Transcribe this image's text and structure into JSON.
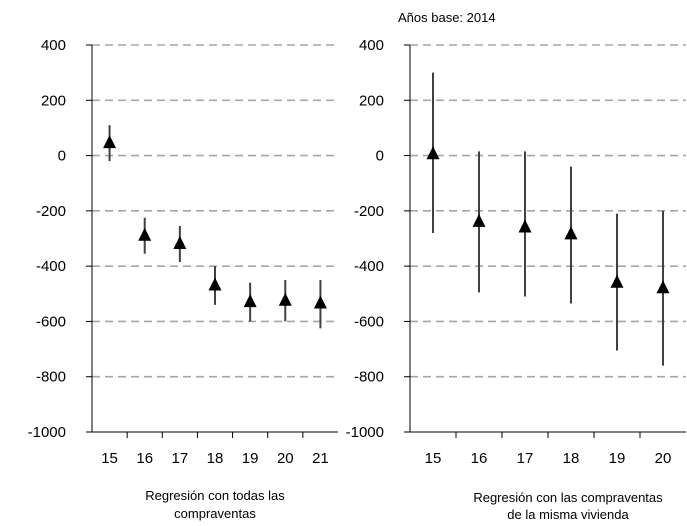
{
  "note": "Años base: 2014",
  "chart_data": [
    {
      "type": "scatter",
      "subtype": "point-with-error-bars",
      "title": "",
      "xlabel_lines": [
        "Regresión con todas las",
        "compraventas"
      ],
      "ylabel": "",
      "ylim": [
        -1000,
        400
      ],
      "yticks": [
        "400",
        "200",
        "0",
        "-200",
        "-400",
        "-600",
        "-800",
        "-1000"
      ],
      "grid": "horizontal dashed",
      "marker": "triangle",
      "color": "#000000",
      "error_bar_color": "#404040",
      "categories": [
        "15",
        "16",
        "17",
        "18",
        "19",
        "20",
        "21"
      ],
      "values": [
        45,
        -290,
        -320,
        -470,
        -530,
        -525,
        -535
      ],
      "lower": [
        -20,
        -355,
        -385,
        -540,
        -600,
        -600,
        -625
      ],
      "upper": [
        110,
        -225,
        -255,
        -400,
        -460,
        -450,
        -450
      ]
    },
    {
      "type": "scatter",
      "subtype": "point-with-error-bars",
      "title": "",
      "xlabel_lines": [
        "Regresión con las compraventas",
        "de la misma vivienda"
      ],
      "ylabel": "",
      "ylim": [
        -1000,
        400
      ],
      "yticks": [
        "400",
        "200",
        "0",
        "-200",
        "-400",
        "-600",
        "-800",
        "-1000"
      ],
      "grid": "horizontal dashed",
      "marker": "triangle",
      "color": "#000000",
      "error_bar_color": "#404040",
      "categories": [
        "15",
        "16",
        "17",
        "18",
        "19",
        "20"
      ],
      "values": [
        5,
        -240,
        -260,
        -285,
        -460,
        -480
      ],
      "lower": [
        -280,
        -495,
        -510,
        -535,
        -705,
        -760
      ],
      "upper": [
        300,
        15,
        15,
        -40,
        -210,
        -200
      ]
    }
  ]
}
